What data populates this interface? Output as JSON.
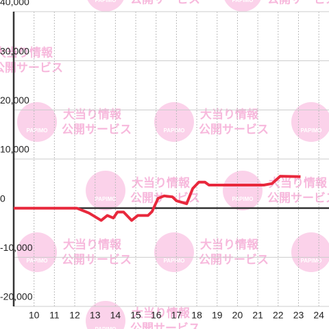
{
  "chart_data": {
    "type": "line",
    "watermark": {
      "logo": "PAPIMO",
      "line1": "大当り情報",
      "line2": "公開サービス"
    },
    "x": [
      9,
      12.1,
      12.7,
      13.3,
      13.6,
      13.9,
      14.1,
      14.4,
      14.8,
      15.1,
      15.6,
      15.8,
      16.1,
      16.4,
      16.8,
      17.0,
      17.5,
      17.8,
      18.1,
      18.4,
      18.6,
      21.3,
      21.7,
      22.1,
      23.1
    ],
    "series": [
      {
        "color": "#e8283c",
        "values": [
          0,
          0,
          -1000,
          -2500,
          -1500,
          -2000,
          -800,
          -800,
          -2500,
          -1500,
          -1500,
          -700,
          2000,
          2500,
          2300,
          1500,
          900,
          4000,
          5300,
          5300,
          4700,
          4700,
          5000,
          6500,
          6400
        ]
      }
    ],
    "xlim": [
      9,
      24.5
    ],
    "xticks": [
      10,
      11,
      12,
      13,
      14,
      15,
      16,
      17,
      18,
      19,
      20,
      21,
      22,
      23,
      24
    ],
    "ylim": [
      -20000,
      40000
    ],
    "yticks": [
      {
        "value": -20000,
        "label": "-20,000"
      },
      {
        "value": -10000,
        "label": "-10,000"
      },
      0,
      {
        "value": 10000,
        "label": "10,000"
      },
      {
        "value": 20000,
        "label": "20,000"
      },
      {
        "value": 30000,
        "label": "30,000"
      },
      {
        "value": 40000,
        "label": "40,000"
      }
    ],
    "grid": true
  }
}
